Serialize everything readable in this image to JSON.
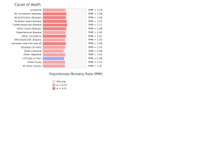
{
  "chart_data": {
    "type": "bar",
    "title": "Cause of death",
    "x_label": "Proportionate Mortality Ratio (PMR)",
    "categories": [
      "Leukemia",
      "All circulatory diseases",
      "All pulmonary diseases",
      "Ischemic heart disease",
      "Cerebrovascular disease",
      "Other heart diseases",
      "Hypertensive disease",
      "Other circulatory",
      "Arteriosclerotic disease",
      "Ischemic heart dis w/o MI",
      "Diseases of veins",
      "Other infective",
      "Other digestive",
      "Cirrhosis of liver",
      "Other injury",
      "All other causes"
    ],
    "values": [
      1.04,
      1.08,
      1.06,
      1.1,
      1.12,
      1.08,
      1.05,
      1.07,
      1.02,
      1.06,
      1.03,
      0.96,
      1.04,
      0.98,
      1.02,
      1.01
    ],
    "value_labels": [
      "PMR = 1.04",
      "PMR = 1.08",
      "PMR = 1.06",
      "PMR = 1.10",
      "PMR = 1.12",
      "PMR = 1.08",
      "PMR = 1.05",
      "PMR = 1.07",
      "PMR = 1.02",
      "PMR = 1.06",
      "PMR = 1.03",
      "PMR = 0.96",
      "PMR = 1.04",
      "PMR = 0.98",
      "PMR = 1.02",
      "PMR = 1.01"
    ],
    "colors": [
      "#f4a6a6",
      "#f08080",
      "#f08080",
      "#f08080",
      "#f08080",
      "#f08080",
      "#f4a6a6",
      "#f08080",
      "#f4a6a6",
      "#f08080",
      "#f4a6a6",
      "#f4a6a6",
      "#f4a6a6",
      "#a0a8f0",
      "#f4a6a6",
      "#f4a6a6"
    ],
    "xlim": [
      0,
      2
    ],
    "legend": [
      {
        "name": "Non-sig",
        "color": "#e8e8e8"
      },
      {
        "name": "p < 0.05",
        "color": "#f4a6a6"
      },
      {
        "name": "p < 0.01",
        "color": "#f08080"
      }
    ]
  }
}
